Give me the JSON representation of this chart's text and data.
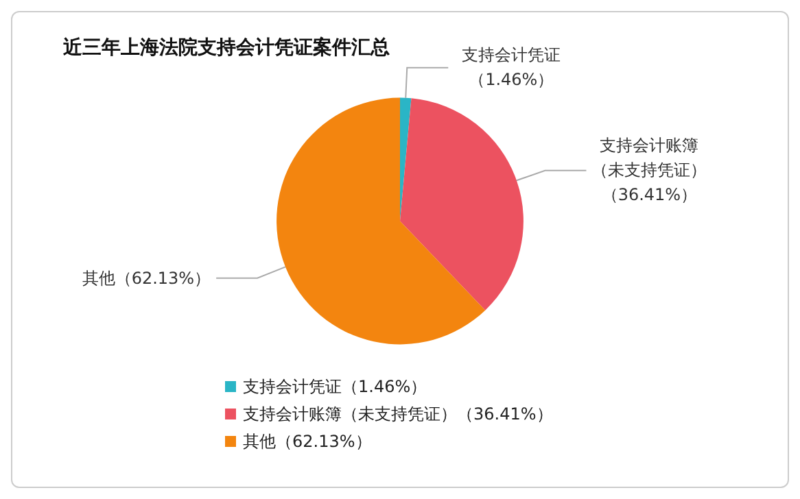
{
  "chart_data": {
    "type": "pie",
    "title": "近三年上海法院支持会计凭证案件汇总",
    "categories": [
      "支持会计凭证（1.46%）",
      "支持会计账簿（未支持凭证）（36.41%）",
      "其他（62.13%）"
    ],
    "values": [
      1.46,
      36.41,
      62.13
    ],
    "colors": [
      "#2ab5c6",
      "#ec5260",
      "#f3850f"
    ],
    "legend": "bottom left"
  }
}
